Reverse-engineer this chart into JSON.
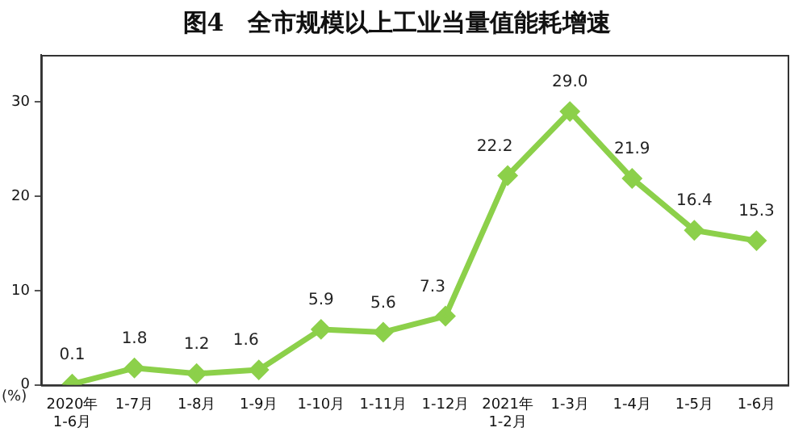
{
  "chart_data": {
    "type": "line",
    "title": "图4　全市规模以上工业当量值能耗增速",
    "ylabel": "(%)",
    "categories": [
      "2020年\n1-6月",
      "1-7月",
      "1-8月",
      "1-9月",
      "1-10月",
      "1-11月",
      "1-12月",
      "2021年\n1-2月",
      "1-3月",
      "1-4月",
      "1-5月",
      "1-6月"
    ],
    "series": [
      {
        "color": "#8cd04a",
        "values": [
          0.1,
          1.8,
          1.2,
          1.6,
          5.9,
          5.6,
          7.3,
          22.2,
          29.0,
          21.9,
          16.4,
          15.3
        ]
      }
    ],
    "value_labels": [
      "0.1",
      "1.8",
      "1.2",
      "1.6",
      "5.9",
      "5.6",
      "7.3",
      "22.2",
      "29.0",
      "21.9",
      "16.4",
      "15.3"
    ],
    "ylim": [
      0,
      35
    ],
    "yticks": [
      0,
      10,
      20,
      30
    ],
    "grid": false,
    "legend": false,
    "marker": "diamond",
    "line_style": "solid"
  }
}
